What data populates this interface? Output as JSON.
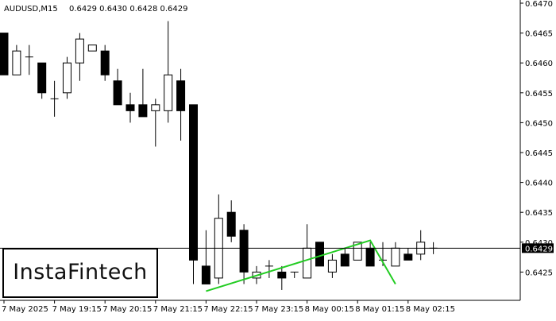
{
  "header": {
    "symbol": "AUDUSD,M15",
    "ohlc_readout": "0.6429 0.6430 0.6428 0.6429"
  },
  "logo": {
    "text": "InstaFintech"
  },
  "chart_data": {
    "type": "candlestick",
    "symbol": "AUDUSD",
    "timeframe": "M15",
    "ylim": [
      0.642,
      0.647
    ],
    "y_ticks": [
      "0.6470",
      "0.6465",
      "0.6460",
      "0.6455",
      "0.6450",
      "0.6445",
      "0.6440",
      "0.6435",
      "0.6430",
      "0.6425"
    ],
    "x_ticks": [
      "7 May 2025",
      "7 May 19:15",
      "7 May 20:15",
      "7 May 21:15",
      "7 May 22:15",
      "7 May 23:15",
      "8 May 00:15",
      "8 May 01:15",
      "8 May 02:15"
    ],
    "current_price": 0.6429,
    "current_price_label": "0.6429",
    "candles": [
      {
        "o": 0.6465,
        "h": 0.6465,
        "l": 0.6458,
        "c": 0.6458
      },
      {
        "o": 0.6458,
        "h": 0.6463,
        "l": 0.6458,
        "c": 0.6462
      },
      {
        "o": 0.6461,
        "h": 0.6463,
        "l": 0.6458,
        "c": 0.6461
      },
      {
        "o": 0.646,
        "h": 0.646,
        "l": 0.6454,
        "c": 0.6455
      },
      {
        "o": 0.6454,
        "h": 0.6457,
        "l": 0.6451,
        "c": 0.6454
      },
      {
        "o": 0.6455,
        "h": 0.6461,
        "l": 0.6454,
        "c": 0.646
      },
      {
        "o": 0.646,
        "h": 0.6465,
        "l": 0.6457,
        "c": 0.6464
      },
      {
        "o": 0.6462,
        "h": 0.6463,
        "l": 0.6462,
        "c": 0.6463
      },
      {
        "o": 0.6462,
        "h": 0.6463,
        "l": 0.6457,
        "c": 0.6458
      },
      {
        "o": 0.6457,
        "h": 0.6459,
        "l": 0.6453,
        "c": 0.6453
      },
      {
        "o": 0.6453,
        "h": 0.6455,
        "l": 0.645,
        "c": 0.6452
      },
      {
        "o": 0.6453,
        "h": 0.6459,
        "l": 0.6451,
        "c": 0.6451
      },
      {
        "o": 0.6452,
        "h": 0.6454,
        "l": 0.6446,
        "c": 0.6453
      },
      {
        "o": 0.6452,
        "h": 0.6467,
        "l": 0.645,
        "c": 0.6458
      },
      {
        "o": 0.6457,
        "h": 0.6459,
        "l": 0.6447,
        "c": 0.6452
      },
      {
        "o": 0.6453,
        "h": 0.6453,
        "l": 0.6423,
        "c": 0.6427
      },
      {
        "o": 0.6426,
        "h": 0.6432,
        "l": 0.6423,
        "c": 0.6423
      },
      {
        "o": 0.6424,
        "h": 0.6438,
        "l": 0.6423,
        "c": 0.6434
      },
      {
        "o": 0.6435,
        "h": 0.6437,
        "l": 0.643,
        "c": 0.6431
      },
      {
        "o": 0.6432,
        "h": 0.6433,
        "l": 0.6423,
        "c": 0.6425
      },
      {
        "o": 0.6424,
        "h": 0.6426,
        "l": 0.6423,
        "c": 0.6425
      },
      {
        "o": 0.6426,
        "h": 0.6427,
        "l": 0.6424,
        "c": 0.6426
      },
      {
        "o": 0.6425,
        "h": 0.6426,
        "l": 0.6422,
        "c": 0.6424
      },
      {
        "o": 0.6425,
        "h": 0.6425,
        "l": 0.6424,
        "c": 0.6425
      },
      {
        "o": 0.6424,
        "h": 0.6433,
        "l": 0.6424,
        "c": 0.6429
      },
      {
        "o": 0.643,
        "h": 0.643,
        "l": 0.6426,
        "c": 0.6426
      },
      {
        "o": 0.6425,
        "h": 0.6428,
        "l": 0.6424,
        "c": 0.6427
      },
      {
        "o": 0.6428,
        "h": 0.6429,
        "l": 0.6426,
        "c": 0.6426
      },
      {
        "o": 0.6427,
        "h": 0.643,
        "l": 0.6427,
        "c": 0.643
      },
      {
        "o": 0.6429,
        "h": 0.643,
        "l": 0.6426,
        "c": 0.6426
      },
      {
        "o": 0.6427,
        "h": 0.643,
        "l": 0.6426,
        "c": 0.6427
      },
      {
        "o": 0.6426,
        "h": 0.643,
        "l": 0.6426,
        "c": 0.6429
      },
      {
        "o": 0.6428,
        "h": 0.6429,
        "l": 0.6427,
        "c": 0.6427
      },
      {
        "o": 0.6428,
        "h": 0.6432,
        "l": 0.6427,
        "c": 0.643
      },
      {
        "o": 0.6429,
        "h": 0.643,
        "l": 0.6428,
        "c": 0.6429
      }
    ],
    "pattern_line": {
      "color": "#22cc22",
      "points": [
        {
          "candle": 16,
          "price": 0.64218
        },
        {
          "candle": 29,
          "price": 0.64303
        },
        {
          "candle": 31,
          "price": 0.6423
        }
      ]
    },
    "colors": {
      "bull_body": "#ffffff",
      "bear_body": "#000000",
      "wick": "#000000",
      "grid": "none"
    }
  }
}
